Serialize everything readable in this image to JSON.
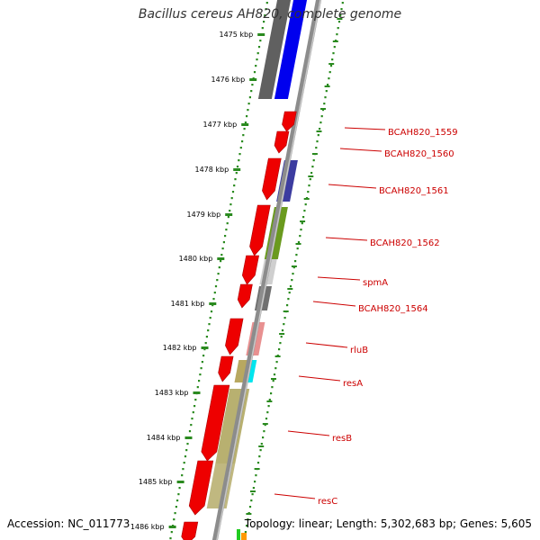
{
  "title": "Bacillus cereus AH820, complete genome",
  "footer": {
    "accession_label": "Accession:",
    "accession": "NC_011773",
    "topology_label": "Topology:",
    "topology": "linear",
    "length_label": "Length:",
    "length": "5,302,683 bp",
    "genes_label": "Genes:",
    "genes": "5,605"
  },
  "axis": {
    "unit": "kbp",
    "ticks": [
      "1475 kbp",
      "1476 kbp",
      "1477 kbp",
      "1478 kbp",
      "1479 kbp",
      "1480 kbp",
      "1481 kbp",
      "1482 kbp",
      "1483 kbp",
      "1484 kbp",
      "1485 kbp",
      "1486 kbp"
    ]
  },
  "colors": {
    "dots": "#2a8a1f",
    "backbone": "#8c8c8c",
    "label": "#cc0000",
    "gene_red": "#ee0000"
  },
  "genes": [
    {
      "name": "BCAH820_1559",
      "color": "#ee0000"
    },
    {
      "name": "BCAH820_1560",
      "color": "#ee0000"
    },
    {
      "name": "BCAH820_1561",
      "color": "#ee0000"
    },
    {
      "name": "BCAH820_1562",
      "color": "#ee0000"
    },
    {
      "name": "spmA",
      "color": "#ee0000"
    },
    {
      "name": "BCAH820_1564",
      "color": "#ee0000"
    },
    {
      "name": "rluB",
      "color": "#ee0000"
    },
    {
      "name": "resA",
      "color": "#ee0000"
    },
    {
      "name": "resB",
      "color": "#ee0000"
    },
    {
      "name": "resC",
      "color": "#ee0000"
    }
  ]
}
